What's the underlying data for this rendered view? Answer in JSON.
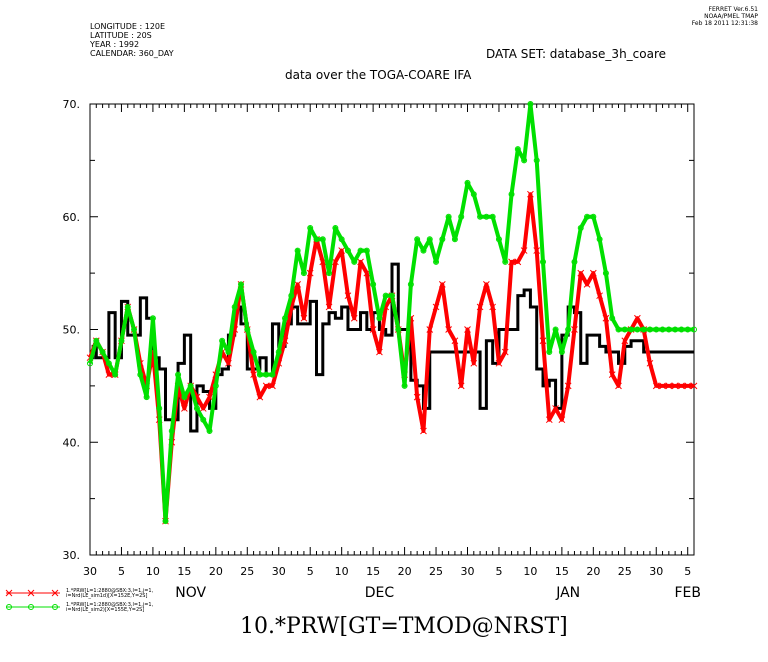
{
  "header": {
    "meta_lines": [
      "LONGITUDE : 120E",
      "LATITUDE : 20S",
      "YEAR : 1992",
      "CALENDAR: 360_DAY"
    ],
    "stamp_lines": [
      "FERRET  Ver.6.51",
      "NOAA/PMEL TMAP",
      "Feb 18 2011 12:31:38"
    ],
    "dataset": "DATA SET: database_3h_coare",
    "subtitle": "data over the TOGA-COARE IFA"
  },
  "legend": [
    {
      "label_lines": [
        "1.*PRW[L=1:2880@SBX:3,l=1,j=1,",
        "i=Nrd(LE_sim1d)[X=152E,Y=2S]"
      ],
      "color": "#ff0000",
      "marker": "cross"
    },
    {
      "label_lines": [
        "1.*PRW[L=1:2880@SBX:3,l=1,j=1,",
        "i=Nrd(LE_sim2)[X=155E,Y=2S]"
      ],
      "color": "#00e000",
      "marker": "circle"
    }
  ],
  "bottom_title": "10.*PRW[GT=TMOD@NRST]",
  "chart_data": {
    "type": "line",
    "title": "data over the TOGA-COARE IFA",
    "x": {
      "range_days": [
        0,
        96
      ],
      "tick_labels": [
        "30",
        "5",
        "10",
        "15",
        "20",
        "25",
        "30",
        "5",
        "10",
        "15",
        "20",
        "25",
        "30",
        "5",
        "10",
        "15",
        "20",
        "25",
        "30",
        "5"
      ],
      "tick_days": [
        0,
        5,
        10,
        15,
        20,
        25,
        30,
        35,
        40,
        45,
        50,
        55,
        60,
        65,
        70,
        75,
        80,
        85,
        90,
        95
      ],
      "month_labels": [
        {
          "label": "NOV",
          "day": 16
        },
        {
          "label": "DEC",
          "day": 46
        },
        {
          "label": "JAN",
          "day": 76
        },
        {
          "label": "FEB",
          "day": 95
        }
      ]
    },
    "ylim": [
      30,
      70
    ],
    "y_tick_labels": [
      {
        "value": 30,
        "label": "30."
      },
      {
        "value": 40,
        "label": "40."
      },
      {
        "value": 50,
        "label": "50."
      },
      {
        "value": 60,
        "label": "60."
      },
      {
        "value": 70,
        "label": "70."
      }
    ],
    "grid": false,
    "series": [
      {
        "color": "#000000",
        "style": "step",
        "x": [
          0,
          0.5,
          1,
          2,
          3,
          4,
          5,
          6,
          7,
          8,
          9,
          10,
          11,
          12,
          13,
          14,
          15,
          16,
          17,
          18,
          19,
          20,
          21,
          22,
          23,
          24,
          25,
          26,
          27,
          28,
          29,
          30,
          31,
          32,
          33,
          34,
          35,
          36,
          37,
          38,
          39,
          40,
          41,
          42,
          43,
          44,
          45,
          46,
          47,
          48,
          49,
          50,
          51,
          52,
          53,
          54,
          55,
          56,
          57,
          58,
          59,
          60,
          61,
          62,
          63,
          64,
          65,
          66,
          67,
          68,
          69,
          70,
          71,
          72,
          73,
          74,
          75,
          76,
          77,
          78,
          79,
          80,
          81,
          82,
          83,
          84,
          85,
          86,
          87,
          88,
          89,
          90,
          91,
          92,
          93,
          94,
          95,
          96
        ],
        "y": [
          47.5,
          48.5,
          47.5,
          47.5,
          51.5,
          47.5,
          52.5,
          49.5,
          49.5,
          52.8,
          51.0,
          47.5,
          46.5,
          42.0,
          42.0,
          47.0,
          49.5,
          41.0,
          45.0,
          44.5,
          43.0,
          46.0,
          46.5,
          49.5,
          52.0,
          50.5,
          46.5,
          46.5,
          47.5,
          46.0,
          50.5,
          48.5,
          50.5,
          52.0,
          50.5,
          50.5,
          52.5,
          46.0,
          50.5,
          51.5,
          51.0,
          52.0,
          50.0,
          50.0,
          51.5,
          50.0,
          51.5,
          50.0,
          49.5,
          55.8,
          50.0,
          50.0,
          45.5,
          45.0,
          43.0,
          48.0,
          48.0,
          48.0,
          48.0,
          48.0,
          48.0,
          48.0,
          48.0,
          43.0,
          49.0,
          47.0,
          50.0,
          50.0,
          50.0,
          53.0,
          53.5,
          52.0,
          46.5,
          45.0,
          45.5,
          43.0,
          49.5,
          52.0,
          51.5,
          47.0,
          49.5,
          49.5,
          48.5,
          48.0,
          48.0,
          47.0,
          48.5,
          49.0,
          49.0,
          48.0,
          48.0,
          48.0,
          48.0,
          48.0,
          48.0,
          48.0,
          48.0,
          48.0
        ]
      },
      {
        "color": "#ff0000",
        "style": "line+cross",
        "x": [
          0,
          1,
          2,
          3,
          4,
          5,
          6,
          7,
          8,
          9,
          10,
          11,
          12,
          13,
          14,
          15,
          16,
          17,
          18,
          19,
          20,
          21,
          22,
          23,
          24,
          25,
          26,
          27,
          28,
          29,
          30,
          31,
          32,
          33,
          34,
          35,
          36,
          37,
          38,
          39,
          40,
          41,
          42,
          43,
          44,
          45,
          46,
          47,
          48,
          49,
          50,
          51,
          52,
          53,
          54,
          55,
          56,
          57,
          58,
          59,
          60,
          61,
          62,
          63,
          64,
          65,
          66,
          67,
          68,
          69,
          70,
          71,
          72,
          73,
          74,
          75,
          76,
          77,
          78,
          79,
          80,
          81,
          82,
          83,
          84,
          85,
          86,
          87,
          88,
          89,
          90,
          91,
          92,
          93,
          94,
          95,
          96
        ],
        "y": [
          47.5,
          49.0,
          48.0,
          46.0,
          46.0,
          49.0,
          52.0,
          50.0,
          47.0,
          45.0,
          48.0,
          42.0,
          33.0,
          40.0,
          45.0,
          43.0,
          45.0,
          44.0,
          43.0,
          44.0,
          46.0,
          48.0,
          47.0,
          50.0,
          54.0,
          50.0,
          46.0,
          44.0,
          45.0,
          45.0,
          47.0,
          49.0,
          52.0,
          54.0,
          51.0,
          55.0,
          58.0,
          56.0,
          52.0,
          56.0,
          57.0,
          53.0,
          51.0,
          56.0,
          55.0,
          50.0,
          48.0,
          52.0,
          53.0,
          50.0,
          46.0,
          51.0,
          44.0,
          41.0,
          50.0,
          52.0,
          54.0,
          50.0,
          49.0,
          45.0,
          50.0,
          47.0,
          52.0,
          54.0,
          52.0,
          47.0,
          48.0,
          56.0,
          56.0,
          57.0,
          62.0,
          57.0,
          49.0,
          42.0,
          43.0,
          42.0,
          45.0,
          50.0,
          55.0,
          54.0,
          55.0,
          53.0,
          51.0,
          46.0,
          45.0,
          49.0,
          50.0,
          51.0,
          50.0,
          47.0,
          45.0,
          45.0,
          45.0,
          45.0,
          45.0,
          45.0,
          45.0
        ]
      },
      {
        "color": "#00e000",
        "style": "line+circle",
        "x": [
          0,
          1,
          2,
          3,
          4,
          5,
          6,
          7,
          8,
          9,
          10,
          11,
          12,
          13,
          14,
          15,
          16,
          17,
          18,
          19,
          20,
          21,
          22,
          23,
          24,
          25,
          26,
          27,
          28,
          29,
          30,
          31,
          32,
          33,
          34,
          35,
          36,
          37,
          38,
          39,
          40,
          41,
          42,
          43,
          44,
          45,
          46,
          47,
          48,
          49,
          50,
          51,
          52,
          53,
          54,
          55,
          56,
          57,
          58,
          59,
          60,
          61,
          62,
          63,
          64,
          65,
          66,
          67,
          68,
          69,
          70,
          71,
          72,
          73,
          74,
          75,
          76,
          77,
          78,
          79,
          80,
          81,
          82,
          83,
          84,
          85,
          86,
          87,
          88,
          89,
          90,
          91,
          92,
          93,
          94,
          95,
          96
        ],
        "y": [
          47.0,
          49.0,
          48.0,
          47.0,
          46.0,
          49.0,
          52.0,
          50.0,
          46.0,
          44.0,
          51.0,
          43.0,
          33.0,
          41.0,
          46.0,
          44.0,
          45.0,
          43.0,
          42.0,
          41.0,
          45.0,
          49.0,
          48.0,
          52.0,
          54.0,
          50.0,
          48.0,
          46.0,
          46.0,
          46.0,
          48.0,
          51.0,
          53.0,
          57.0,
          55.0,
          59.0,
          58.0,
          58.0,
          55.0,
          59.0,
          58.0,
          57.0,
          56.0,
          57.0,
          57.0,
          54.0,
          51.0,
          53.0,
          53.0,
          50.0,
          45.0,
          54.0,
          58.0,
          57.0,
          58.0,
          56.0,
          58.0,
          60.0,
          58.0,
          60.0,
          63.0,
          62.0,
          60.0,
          60.0,
          60.0,
          58.0,
          56.0,
          62.0,
          66.0,
          65.0,
          70.0,
          65.0,
          56.0,
          48.0,
          50.0,
          48.0,
          50.0,
          56.0,
          59.0,
          60.0,
          60.0,
          58.0,
          55.0,
          51.0,
          50.0,
          50.0,
          50.0,
          50.0,
          50.0,
          50.0,
          50.0,
          50.0,
          50.0,
          50.0,
          50.0,
          50.0,
          50.0
        ]
      }
    ]
  }
}
